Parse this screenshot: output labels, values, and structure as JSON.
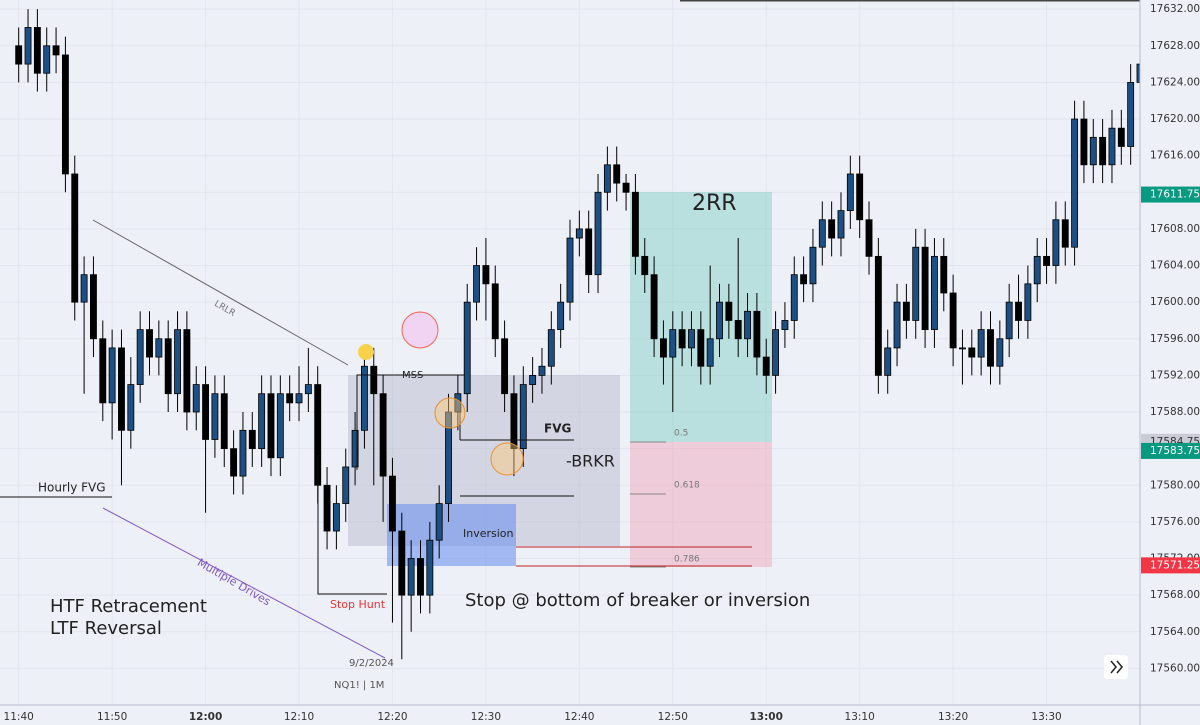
{
  "chart_data": {
    "type": "candlestick",
    "up_color": "#1d4f83",
    "down_color": "#000000",
    "wick_color": "#000000",
    "xlim": [
      698,
      820
    ],
    "ylim": [
      17556,
      17633
    ],
    "xticks": [
      {
        "value": 700,
        "label": "11:40"
      },
      {
        "value": 710,
        "label": "11:50"
      },
      {
        "value": 720,
        "label": "12:00"
      },
      {
        "value": 730,
        "label": "12:10"
      },
      {
        "value": 740,
        "label": "12:20"
      },
      {
        "value": 750,
        "label": "12:30"
      },
      {
        "value": 760,
        "label": "12:40"
      },
      {
        "value": 770,
        "label": "12:50"
      },
      {
        "value": 780,
        "label": "13:00"
      },
      {
        "value": 790,
        "label": "13:10"
      },
      {
        "value": 800,
        "label": "13:20"
      },
      {
        "value": 810,
        "label": "13:30"
      }
    ],
    "yticks": [
      {
        "value": 17560,
        "label": "17560.00"
      },
      {
        "value": 17564,
        "label": "17564.00"
      },
      {
        "value": 17568,
        "label": "17568.00"
      },
      {
        "value": 17572,
        "label": "17572.00"
      },
      {
        "value": 17576,
        "label": "17576.00"
      },
      {
        "value": 17580,
        "label": "17580.00"
      },
      {
        "value": 17584,
        "label": "17584.00"
      },
      {
        "value": 17588,
        "label": "17588.00"
      },
      {
        "value": 17592,
        "label": "17592.00"
      },
      {
        "value": 17596,
        "label": "17596.00"
      },
      {
        "value": 17600,
        "label": "17600.00"
      },
      {
        "value": 17604,
        "label": "17604.00"
      },
      {
        "value": 17608,
        "label": "17608.00"
      },
      {
        "value": 17612,
        "label": "17612.00"
      },
      {
        "value": 17616,
        "label": "17616.00"
      },
      {
        "value": 17620,
        "label": "17620.00"
      },
      {
        "value": 17624,
        "label": "17624.00"
      },
      {
        "value": 17628,
        "label": "17628.00"
      },
      {
        "value": 17632,
        "label": "17632.00"
      }
    ],
    "price_tags": [
      {
        "value": 17584.75,
        "label": "17584.75",
        "color": "#c9cbd6",
        "text_color": "#333333"
      },
      {
        "value": 17611.75,
        "label": "17611.75",
        "color": "#089981",
        "text_color": "#ffffff"
      },
      {
        "value": 17583.75,
        "label": "17583.75",
        "color": "#089981",
        "text_color": "#ffffff"
      },
      {
        "value": 17571.25,
        "label": "17571.25",
        "color": "#f23645",
        "text_color": "#ffffff"
      }
    ],
    "x": [
      700,
      701,
      702,
      703,
      704,
      705,
      706,
      707,
      708,
      709,
      710,
      711,
      712,
      713,
      714,
      715,
      716,
      717,
      718,
      719,
      720,
      721,
      722,
      723,
      724,
      725,
      726,
      727,
      728,
      729,
      730,
      731,
      732,
      733,
      734,
      735,
      736,
      737,
      738,
      739,
      740,
      741,
      742,
      743,
      744,
      745,
      746,
      747,
      748,
      749,
      750,
      751,
      752,
      753,
      754,
      755,
      756,
      757,
      758,
      759,
      760,
      761,
      762,
      763,
      764,
      765,
      766,
      767,
      768,
      769,
      770,
      771,
      772,
      773,
      774,
      775,
      776,
      777,
      778,
      779,
      780,
      781,
      782,
      783,
      784,
      785,
      786,
      787,
      788,
      789,
      790,
      791,
      792,
      793,
      794,
      795,
      796,
      797,
      798,
      799,
      800,
      801,
      802,
      803,
      804,
      805,
      806,
      807,
      808,
      809,
      810,
      811,
      812,
      813,
      814,
      815,
      816,
      817,
      818,
      819,
      820
    ],
    "open": [
      17628,
      17626,
      17630,
      17625,
      17628,
      17627,
      17614,
      17600,
      17603,
      17596,
      17589,
      17595,
      17586,
      17591,
      17597,
      17594,
      17596,
      17590,
      17597,
      17588,
      17591,
      17585,
      17590,
      17584,
      17581,
      17586,
      17584,
      17590,
      17583,
      17590,
      17589,
      17590,
      17591,
      17580,
      17575,
      17578,
      17582,
      17586,
      17593,
      17590,
      17581,
      17575,
      17568,
      17572,
      17568,
      17574,
      17578,
      17588,
      17590,
      17600,
      17604,
      17602,
      17596,
      17590,
      17584,
      17591,
      17592,
      17593,
      17597,
      17600,
      17607,
      17608,
      17603,
      17612,
      17615,
      17613,
      17612,
      17605,
      17603,
      17596,
      17594,
      17597,
      17595,
      17597,
      17593,
      17596,
      17600,
      17598,
      17596,
      17599,
      17594,
      17592,
      17597,
      17598,
      17603,
      17602,
      17606,
      17609,
      17607,
      17610,
      17614,
      17609,
      17605,
      17592,
      17595,
      17600,
      17598,
      17606,
      17597,
      17605,
      17601,
      17595,
      17595,
      17594,
      17597,
      17593,
      17596,
      17600,
      17598,
      17602,
      17605,
      17604,
      17609,
      17606,
      17620,
      17615,
      17618,
      17615,
      17619,
      17617,
      17624
    ],
    "high": [
      17630,
      17632,
      17632,
      17630,
      17630,
      17629,
      17616,
      17605,
      17605,
      17598,
      17597,
      17597,
      17594,
      17599,
      17599,
      17598,
      17598,
      17599,
      17599,
      17593,
      17593,
      17592,
      17592,
      17586,
      17588,
      17588,
      17592,
      17592,
      17592,
      17592,
      17593,
      17595,
      17593,
      17582,
      17580,
      17584,
      17588,
      17595,
      17595,
      17592,
      17583,
      17577,
      17574,
      17574,
      17576,
      17580,
      17590,
      17592,
      17602,
      17606,
      17607,
      17604,
      17598,
      17592,
      17593,
      17594,
      17595,
      17599,
      17602,
      17609,
      17610,
      17610,
      17614,
      17617,
      17617,
      17614,
      17614,
      17607,
      17605,
      17598,
      17599,
      17599,
      17599,
      17599,
      17604,
      17602,
      17602,
      17607,
      17601,
      17601,
      17596,
      17599,
      17600,
      17605,
      17605,
      17608,
      17611,
      17611,
      17612,
      17616,
      17616,
      17611,
      17607,
      17597,
      17602,
      17602,
      17608,
      17608,
      17607,
      17607,
      17603,
      17597,
      17597,
      17599,
      17599,
      17598,
      17602,
      17603,
      17604,
      17607,
      17607,
      17611,
      17611,
      17622,
      17622,
      17620,
      17620,
      17621,
      17621,
      17626,
      17632
    ],
    "low": [
      17624,
      17624,
      17623,
      17623,
      17625,
      17612,
      17598,
      17590,
      17594,
      17587,
      17585,
      17580,
      17584,
      17589,
      17592,
      17592,
      17588,
      17588,
      17586,
      17586,
      17577,
      17583,
      17582,
      17579,
      17579,
      17582,
      17582,
      17581,
      17581,
      17587,
      17587,
      17588,
      17578,
      17573,
      17573,
      17576,
      17580,
      17584,
      17580,
      17576,
      17565,
      17561,
      17564,
      17566,
      17566,
      17572,
      17576,
      17586,
      17588,
      17598,
      17598,
      17594,
      17588,
      17581,
      17582,
      17589,
      17590,
      17591,
      17595,
      17598,
      17605,
      17601,
      17601,
      17610,
      17611,
      17610,
      17603,
      17601,
      17594,
      17591,
      17588,
      17593,
      17593,
      17591,
      17591,
      17594,
      17596,
      17594,
      17594,
      17592,
      17590,
      17590,
      17595,
      17596,
      17600,
      17600,
      17604,
      17605,
      17605,
      17608,
      17607,
      17603,
      17590,
      17590,
      17593,
      17596,
      17596,
      17595,
      17595,
      17599,
      17593,
      17591,
      17592,
      17592,
      17591,
      17591,
      17594,
      17596,
      17596,
      17600,
      17602,
      17602,
      17604,
      17604,
      17613,
      17613,
      17613,
      17613,
      17615,
      17615,
      17622
    ],
    "close": [
      17626,
      17630,
      17625,
      17628,
      17627,
      17614,
      17600,
      17603,
      17596,
      17589,
      17595,
      17586,
      17591,
      17597,
      17594,
      17596,
      17590,
      17597,
      17588,
      17591,
      17585,
      17590,
      17584,
      17581,
      17586,
      17584,
      17590,
      17583,
      17590,
      17589,
      17590,
      17591,
      17580,
      17575,
      17578,
      17582,
      17586,
      17593,
      17590,
      17581,
      17575,
      17568,
      17572,
      17568,
      17574,
      17578,
      17588,
      17590,
      17600,
      17604,
      17602,
      17596,
      17590,
      17584,
      17591,
      17592,
      17593,
      17597,
      17600,
      17607,
      17608,
      17603,
      17612,
      17615,
      17613,
      17612,
      17605,
      17603,
      17596,
      17594,
      17597,
      17595,
      17597,
      17593,
      17596,
      17600,
      17598,
      17596,
      17599,
      17594,
      17592,
      17597,
      17598,
      17603,
      17602,
      17606,
      17609,
      17607,
      17610,
      17614,
      17609,
      17605,
      17592,
      17595,
      17600,
      17598,
      17606,
      17597,
      17605,
      17601,
      17595,
      17595,
      17594,
      17597,
      17593,
      17596,
      17600,
      17598,
      17602,
      17605,
      17604,
      17609,
      17606,
      17620,
      17615,
      17618,
      17615,
      17619,
      17617,
      17624,
      17626
    ]
  },
  "annotations": {
    "hourly_fvg": "Hourly FVG",
    "lrlr": "LRLR",
    "mss": "MSS",
    "fvg": "FVG",
    "brkr": "-BRKR",
    "inversion": "Inversion",
    "rr": "2RR",
    "fib_05": "0.5",
    "fib_0618": "0.618",
    "fib_0786": "0.786",
    "stop_hunt": "Stop Hunt",
    "multiple_drives": "Multiple Drives",
    "htf": "HTF Retracement",
    "ltf": "LTF Reversal",
    "stop_note": "Stop @ bottom of breaker or inversion",
    "date": "9/2/2024",
    "symbol": "NQ1! | 1M"
  }
}
